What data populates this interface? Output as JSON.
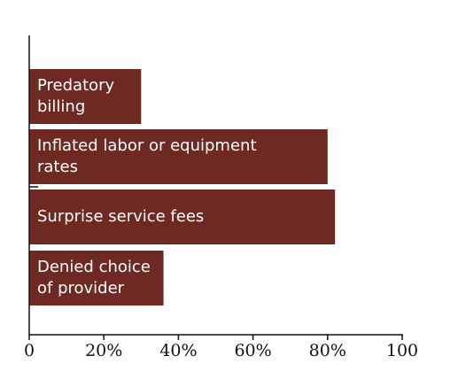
{
  "chart_data": {
    "type": "bar",
    "orientation": "horizontal",
    "title": "",
    "xlabel": "",
    "ylabel": "",
    "categories": [
      [
        "Predatory",
        "billing"
      ],
      [
        "Inflated labor or equipment",
        "rates"
      ],
      [
        "Surprise service fees"
      ],
      [
        "Denied choice",
        "of provider"
      ]
    ],
    "values": [
      30,
      80,
      82,
      36
    ],
    "xlim": [
      0,
      100
    ],
    "xticks": [
      0,
      20,
      40,
      60,
      80,
      100
    ],
    "xtick_labels": [
      "0",
      "20%",
      "40%",
      "60%",
      "80%",
      "100"
    ],
    "grid": false,
    "legend": "none",
    "bar_color": "#6e2a22",
    "text_color": "#ffffff"
  }
}
